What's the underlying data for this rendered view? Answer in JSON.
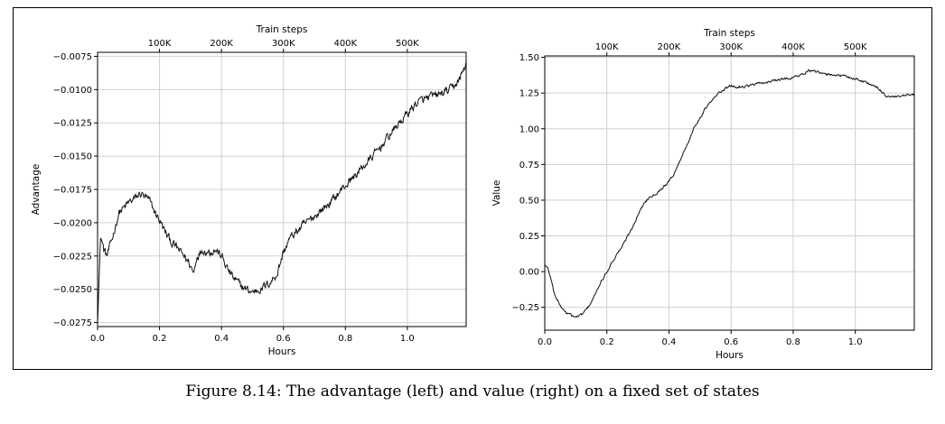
{
  "caption": "Figure 8.14: The advantage (left) and value (right) on a fixed set of states",
  "chart_data": [
    {
      "type": "line",
      "xlabel": "Hours",
      "ylabel": "Advantage",
      "top_xlabel": "Train steps",
      "xlim": [
        0.0,
        1.19
      ],
      "ylim": [
        -0.0278,
        -0.0072
      ],
      "x_ticks": [
        0.0,
        0.2,
        0.4,
        0.6,
        0.8,
        1.0
      ],
      "x_tick_labels": [
        "0.0",
        "0.2",
        "0.4",
        "0.6",
        "0.8",
        "1.0"
      ],
      "y_ticks": [
        -0.0075,
        -0.01,
        -0.0125,
        -0.015,
        -0.0175,
        -0.02,
        -0.0225,
        -0.025,
        -0.0275
      ],
      "y_tick_labels": [
        "−0.0075",
        "−0.0100",
        "−0.0125",
        "−0.0150",
        "−0.0175",
        "−0.0200",
        "−0.0225",
        "−0.0250",
        "−0.0275"
      ],
      "top_ticks": [
        0.2,
        0.4,
        0.6,
        0.8,
        1.0
      ],
      "top_tick_labels": [
        "100K",
        "200K",
        "300K",
        "400K",
        "500K"
      ],
      "grid": true,
      "noise_amplitude": 0.00045,
      "series": [
        {
          "x": [
            0.0,
            0.005,
            0.01,
            0.02,
            0.03,
            0.04,
            0.05,
            0.06,
            0.07,
            0.08,
            0.09,
            0.1,
            0.12,
            0.14,
            0.15,
            0.16,
            0.17,
            0.18,
            0.2,
            0.22,
            0.24,
            0.26,
            0.28,
            0.3,
            0.31,
            0.32,
            0.34,
            0.36,
            0.38,
            0.4,
            0.42,
            0.44,
            0.46,
            0.48,
            0.5,
            0.52,
            0.54,
            0.56,
            0.58,
            0.6,
            0.62,
            0.65,
            0.7,
            0.75,
            0.8,
            0.85,
            0.9,
            0.95,
            1.0,
            1.03,
            1.06,
            1.1,
            1.14,
            1.17,
            1.19
          ],
          "y": [
            -0.0272,
            -0.024,
            -0.021,
            -0.022,
            -0.0225,
            -0.0218,
            -0.021,
            -0.02,
            -0.0192,
            -0.019,
            -0.0188,
            -0.0185,
            -0.0182,
            -0.0178,
            -0.018,
            -0.0182,
            -0.0185,
            -0.019,
            -0.0198,
            -0.0208,
            -0.0215,
            -0.022,
            -0.0225,
            -0.0232,
            -0.0238,
            -0.0225,
            -0.022,
            -0.0222,
            -0.022,
            -0.0225,
            -0.0235,
            -0.0242,
            -0.0247,
            -0.025,
            -0.0252,
            -0.025,
            -0.0248,
            -0.0244,
            -0.0238,
            -0.0222,
            -0.0212,
            -0.0205,
            -0.0195,
            -0.0185,
            -0.0172,
            -0.016,
            -0.0147,
            -0.0132,
            -0.0118,
            -0.011,
            -0.0107,
            -0.0104,
            -0.01,
            -0.0092,
            -0.008
          ]
        }
      ]
    },
    {
      "type": "line",
      "xlabel": "Hours",
      "ylabel": "Value",
      "top_xlabel": "Train steps",
      "xlim": [
        0.0,
        1.19
      ],
      "ylim": [
        -0.41,
        1.51
      ],
      "x_ticks": [
        0.0,
        0.2,
        0.4,
        0.6,
        0.8,
        1.0
      ],
      "x_tick_labels": [
        "0.0",
        "0.2",
        "0.4",
        "0.6",
        "0.8",
        "1.0"
      ],
      "y_ticks": [
        -0.25,
        0.0,
        0.25,
        0.5,
        0.75,
        1.0,
        1.25,
        1.5
      ],
      "y_tick_labels": [
        "−0.25",
        "0.00",
        "0.25",
        "0.50",
        "0.75",
        "1.00",
        "1.25",
        "1.50"
      ],
      "top_ticks": [
        0.2,
        0.4,
        0.6,
        0.8,
        1.0
      ],
      "top_tick_labels": [
        "100K",
        "200K",
        "300K",
        "400K",
        "500K"
      ],
      "grid": true,
      "noise_amplitude": 0.012,
      "series": [
        {
          "x": [
            0.0,
            0.01,
            0.02,
            0.03,
            0.05,
            0.07,
            0.09,
            0.1,
            0.12,
            0.14,
            0.16,
            0.18,
            0.2,
            0.22,
            0.25,
            0.28,
            0.3,
            0.32,
            0.34,
            0.36,
            0.38,
            0.4,
            0.42,
            0.44,
            0.46,
            0.48,
            0.5,
            0.52,
            0.54,
            0.56,
            0.58,
            0.6,
            0.62,
            0.65,
            0.7,
            0.75,
            0.8,
            0.83,
            0.85,
            0.87,
            0.9,
            0.93,
            0.96,
            1.0,
            1.03,
            1.06,
            1.08,
            1.1,
            1.13,
            1.16,
            1.19
          ],
          "y": [
            0.05,
            0.02,
            -0.05,
            -0.15,
            -0.24,
            -0.29,
            -0.31,
            -0.32,
            -0.3,
            -0.25,
            -0.17,
            -0.08,
            0.0,
            0.08,
            0.18,
            0.3,
            0.4,
            0.48,
            0.53,
            0.55,
            0.59,
            0.63,
            0.7,
            0.8,
            0.9,
            1.0,
            1.08,
            1.15,
            1.2,
            1.25,
            1.28,
            1.3,
            1.29,
            1.3,
            1.32,
            1.34,
            1.36,
            1.38,
            1.41,
            1.4,
            1.38,
            1.38,
            1.37,
            1.35,
            1.33,
            1.3,
            1.27,
            1.23,
            1.22,
            1.23,
            1.24
          ]
        }
      ]
    }
  ]
}
